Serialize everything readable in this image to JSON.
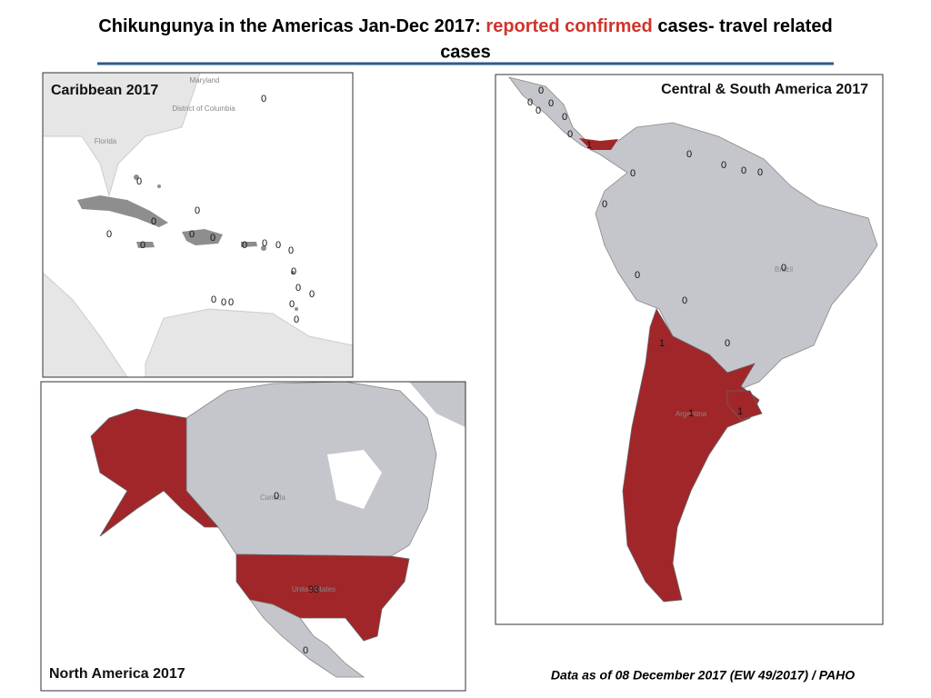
{
  "title": {
    "part1": "Chikungunya in the Americas Jan-Dec 2017:",
    "highlight": "reported confirmed",
    "part2": "cases- travel related",
    "part3": "cases"
  },
  "panels": [
    {
      "title": "Caribbean 2017",
      "basemap_labels": [
        "Maryland",
        "District of Columbia",
        "Florida"
      ],
      "labels": [
        0,
        0,
        0,
        0,
        0,
        0,
        0,
        0,
        0,
        0,
        0,
        0,
        0,
        0,
        0,
        0,
        0,
        0,
        0,
        0
      ]
    },
    {
      "title": "Central & South America  2017",
      "basemap_labels": [
        "Brazil",
        "Argentina"
      ],
      "labels": [
        0,
        0,
        0,
        0,
        0,
        0,
        1,
        0,
        0,
        0,
        0,
        0,
        0,
        0,
        0,
        0,
        1,
        0,
        1,
        1
      ]
    },
    {
      "title": "North America  2017",
      "basemap_labels": [
        "Canada",
        "United States"
      ],
      "labels": [
        0,
        93,
        0
      ]
    }
  ],
  "footer": "Data as of 08 December 2017 (EW 49/2017) / PAHO"
}
